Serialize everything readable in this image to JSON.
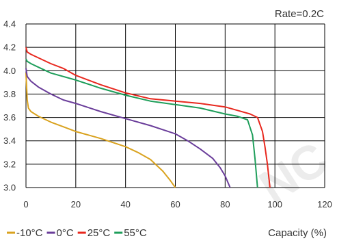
{
  "chart_data": {
    "type": "line",
    "title": "",
    "annotation": "Rate=0.2C",
    "xlabel": "Capacity (%)",
    "ylabel": "",
    "xlim": [
      0,
      120
    ],
    "ylim": [
      3.0,
      4.4
    ],
    "xticks": [
      0,
      20,
      40,
      60,
      80,
      100,
      120
    ],
    "yticks": [
      3.0,
      3.2,
      3.4,
      3.6,
      3.8,
      4.0,
      4.2,
      4.4
    ],
    "grid": true,
    "legend_position": "bottom-left",
    "series": [
      {
        "name": "-10°C",
        "color": "#d9a21e",
        "points": [
          [
            0,
            3.98
          ],
          [
            0.5,
            3.75
          ],
          [
            1,
            3.68
          ],
          [
            2,
            3.65
          ],
          [
            5,
            3.61
          ],
          [
            10,
            3.56
          ],
          [
            15,
            3.52
          ],
          [
            20,
            3.48
          ],
          [
            30,
            3.42
          ],
          [
            40,
            3.35
          ],
          [
            45,
            3.3
          ],
          [
            50,
            3.24
          ],
          [
            55,
            3.14
          ],
          [
            58,
            3.06
          ],
          [
            60,
            3.0
          ]
        ]
      },
      {
        "name": "0°C",
        "color": "#6a3d9a",
        "points": [
          [
            0,
            4.02
          ],
          [
            0.5,
            3.95
          ],
          [
            2,
            3.91
          ],
          [
            5,
            3.86
          ],
          [
            10,
            3.8
          ],
          [
            15,
            3.75
          ],
          [
            20,
            3.72
          ],
          [
            30,
            3.65
          ],
          [
            40,
            3.59
          ],
          [
            50,
            3.53
          ],
          [
            60,
            3.46
          ],
          [
            65,
            3.4
          ],
          [
            70,
            3.33
          ],
          [
            75,
            3.25
          ],
          [
            78,
            3.17
          ],
          [
            80,
            3.1
          ],
          [
            82,
            3.0
          ]
        ]
      },
      {
        "name": "25°C",
        "color": "#e8281e",
        "points": [
          [
            0,
            4.2
          ],
          [
            0.5,
            4.16
          ],
          [
            2,
            4.14
          ],
          [
            5,
            4.11
          ],
          [
            10,
            4.06
          ],
          [
            15,
            4.02
          ],
          [
            20,
            3.96
          ],
          [
            30,
            3.88
          ],
          [
            40,
            3.81
          ],
          [
            50,
            3.76
          ],
          [
            60,
            3.74
          ],
          [
            70,
            3.72
          ],
          [
            80,
            3.69
          ],
          [
            85,
            3.66
          ],
          [
            90,
            3.63
          ],
          [
            93,
            3.6
          ],
          [
            95,
            3.48
          ],
          [
            96,
            3.35
          ],
          [
            97,
            3.2
          ],
          [
            98,
            3.0
          ]
        ]
      },
      {
        "name": "55°C",
        "color": "#1e9e5a",
        "points": [
          [
            0,
            4.1
          ],
          [
            0.5,
            4.08
          ],
          [
            2,
            4.06
          ],
          [
            5,
            4.03
          ],
          [
            10,
            3.98
          ],
          [
            20,
            3.92
          ],
          [
            30,
            3.85
          ],
          [
            40,
            3.79
          ],
          [
            50,
            3.74
          ],
          [
            60,
            3.71
          ],
          [
            70,
            3.68
          ],
          [
            80,
            3.63
          ],
          [
            85,
            3.61
          ],
          [
            89,
            3.58
          ],
          [
            91,
            3.45
          ],
          [
            92,
            3.25
          ],
          [
            93,
            3.0
          ]
        ]
      }
    ]
  },
  "watermark": "NC"
}
